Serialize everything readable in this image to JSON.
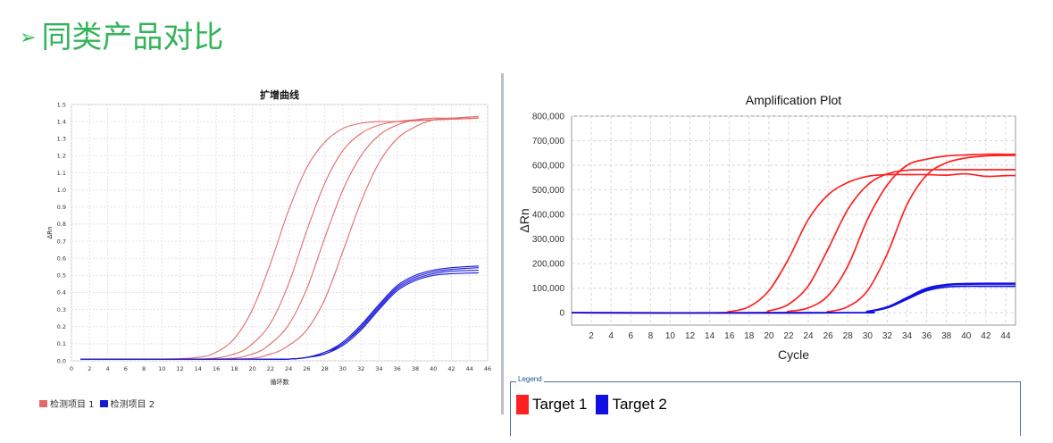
{
  "slide": {
    "title": "同类产品对比",
    "bullet": "➢"
  },
  "legend_label": "Legend",
  "colors": {
    "title": "#33b35a",
    "red1": "#e26a6a",
    "blue1": "#1818d8",
    "red2": "#ff2020",
    "blue2": "#1010e0"
  },
  "chart_data": [
    {
      "type": "line",
      "title": "扩增曲线",
      "xlabel": "循环数",
      "ylabel": "ΔRn",
      "xlim": [
        0,
        46
      ],
      "ylim": [
        0,
        1.5
      ],
      "xticks": [
        0,
        2,
        4,
        6,
        8,
        10,
        12,
        14,
        16,
        18,
        20,
        22,
        24,
        26,
        28,
        30,
        32,
        34,
        36,
        38,
        40,
        42,
        44,
        46
      ],
      "yticks": [
        0,
        0.1,
        0.2,
        0.3,
        0.4,
        0.5,
        0.6,
        0.7,
        0.8,
        0.9,
        1.0,
        1.1,
        1.2,
        1.3,
        1.4,
        1.5
      ],
      "ytick_labels": [
        "0.0",
        "0.1",
        "0.2",
        "0.3",
        "0.4",
        "0.5",
        "0.6",
        "0.7",
        "0.8",
        "0.9",
        "1.0",
        "1.1",
        "1.2",
        "1.3",
        "1.4",
        "1.5"
      ],
      "grid": true,
      "legend": [
        {
          "name": "检测项目 1",
          "color": "#e26a6a"
        },
        {
          "name": "检测项目 2",
          "color": "#1818d8"
        }
      ],
      "series": [
        {
          "name": "检测项目 1",
          "color": "#e26a6a",
          "x": [
            1,
            10,
            14,
            16,
            18,
            20,
            22,
            24,
            26,
            28,
            30,
            32,
            34,
            36,
            40,
            45
          ],
          "y": [
            0.01,
            0.01,
            0.02,
            0.05,
            0.13,
            0.3,
            0.57,
            0.88,
            1.13,
            1.28,
            1.36,
            1.39,
            1.4,
            1.4,
            1.41,
            1.42
          ]
        },
        {
          "name": "检测项目 1",
          "color": "#e26a6a",
          "x": [
            1,
            14,
            18,
            20,
            22,
            24,
            26,
            28,
            30,
            32,
            34,
            36,
            38,
            40,
            45
          ],
          "y": [
            0.01,
            0.01,
            0.04,
            0.1,
            0.22,
            0.45,
            0.76,
            1.04,
            1.23,
            1.33,
            1.38,
            1.4,
            1.41,
            1.41,
            1.42
          ]
        },
        {
          "name": "检测项目 1",
          "color": "#e26a6a",
          "x": [
            1,
            16,
            20,
            22,
            24,
            26,
            28,
            30,
            32,
            34,
            36,
            38,
            40,
            42,
            45
          ],
          "y": [
            0.01,
            0.01,
            0.04,
            0.1,
            0.21,
            0.42,
            0.72,
            1.0,
            1.2,
            1.32,
            1.38,
            1.41,
            1.42,
            1.42,
            1.43
          ]
        },
        {
          "name": "检测项目 1",
          "color": "#e26a6a",
          "x": [
            1,
            18,
            22,
            24,
            26,
            28,
            30,
            32,
            34,
            36,
            38,
            40,
            42,
            45
          ],
          "y": [
            0.01,
            0.01,
            0.04,
            0.09,
            0.18,
            0.36,
            0.64,
            0.93,
            1.16,
            1.3,
            1.37,
            1.41,
            1.42,
            1.43
          ]
        },
        {
          "name": "检测项目 2",
          "color": "#1818d8",
          "x": [
            1,
            20,
            24,
            26,
            28,
            30,
            32,
            34,
            36,
            38,
            40,
            42,
            45
          ],
          "y": [
            0.01,
            0.01,
            0.01,
            0.02,
            0.04,
            0.09,
            0.18,
            0.3,
            0.41,
            0.47,
            0.5,
            0.51,
            0.515
          ]
        },
        {
          "name": "检测项目 2",
          "color": "#1818d8",
          "x": [
            1,
            20,
            24,
            26,
            28,
            30,
            32,
            34,
            36,
            38,
            40,
            42,
            45
          ],
          "y": [
            0.01,
            0.01,
            0.01,
            0.02,
            0.04,
            0.1,
            0.19,
            0.31,
            0.42,
            0.48,
            0.51,
            0.525,
            0.53
          ]
        },
        {
          "name": "检测项目 2",
          "color": "#1818d8",
          "x": [
            1,
            20,
            24,
            26,
            28,
            30,
            32,
            34,
            36,
            38,
            40,
            42,
            45
          ],
          "y": [
            0.01,
            0.01,
            0.01,
            0.02,
            0.05,
            0.1,
            0.2,
            0.32,
            0.43,
            0.49,
            0.52,
            0.535,
            0.545
          ]
        },
        {
          "name": "检测项目 2",
          "color": "#1818d8",
          "x": [
            1,
            20,
            24,
            26,
            28,
            30,
            32,
            34,
            36,
            38,
            40,
            42,
            45
          ],
          "y": [
            0.01,
            0.01,
            0.01,
            0.02,
            0.05,
            0.11,
            0.21,
            0.33,
            0.44,
            0.5,
            0.53,
            0.545,
            0.555
          ]
        }
      ]
    },
    {
      "type": "line",
      "title": "Amplification Plot",
      "xlabel": "Cycle",
      "ylabel": "ΔRn",
      "xlim": [
        0,
        45
      ],
      "ylim": [
        -50000,
        800000
      ],
      "xticks": [
        2,
        4,
        6,
        8,
        10,
        12,
        14,
        16,
        18,
        20,
        22,
        24,
        26,
        28,
        30,
        32,
        34,
        36,
        38,
        40,
        42,
        44
      ],
      "yticks": [
        0,
        100000,
        200000,
        300000,
        400000,
        500000,
        600000,
        700000,
        800000
      ],
      "ytick_labels": [
        "0",
        "100,000",
        "200,000",
        "300,000",
        "400,000",
        "500,000",
        "600,000",
        "700,000",
        "800,000"
      ],
      "grid": true,
      "legend": [
        {
          "name": "Target 1",
          "color": "#ff2020"
        },
        {
          "name": "Target 2",
          "color": "#1010e0"
        }
      ],
      "series": [
        {
          "name": "Target 1",
          "color": "#ff2020",
          "x": [
            0,
            14,
            16,
            18,
            20,
            22,
            24,
            26,
            28,
            30,
            32,
            34,
            36,
            38,
            40,
            42,
            44,
            45
          ],
          "y": [
            0,
            0,
            5000,
            25000,
            90000,
            220000,
            380000,
            480000,
            530000,
            555000,
            562000,
            562000,
            562000,
            560000,
            565000,
            555000,
            558000,
            558000
          ]
        },
        {
          "name": "Target 1",
          "color": "#ff2020",
          "x": [
            0,
            18,
            20,
            22,
            24,
            26,
            28,
            30,
            32,
            34,
            36,
            38,
            40,
            42,
            44,
            45
          ],
          "y": [
            0,
            0,
            8000,
            35000,
            110000,
            260000,
            420000,
            520000,
            565000,
            580000,
            582000,
            582000,
            582000,
            582000,
            582000,
            582000
          ]
        },
        {
          "name": "Target 1",
          "color": "#ff2020",
          "x": [
            0,
            20,
            22,
            24,
            26,
            28,
            30,
            32,
            34,
            36,
            38,
            40,
            42,
            44,
            45
          ],
          "y": [
            0,
            0,
            6000,
            20000,
            70000,
            190000,
            380000,
            520000,
            600000,
            625000,
            638000,
            642000,
            645000,
            645000,
            645000
          ]
        },
        {
          "name": "Target 1",
          "color": "#ff2020",
          "x": [
            0,
            24,
            26,
            28,
            30,
            32,
            34,
            36,
            38,
            40,
            42,
            44,
            45
          ],
          "y": [
            0,
            0,
            5000,
            25000,
            90000,
            240000,
            440000,
            560000,
            610000,
            630000,
            638000,
            640000,
            640000
          ]
        },
        {
          "name": "Target 2",
          "color": "#1010e0",
          "x": [
            0,
            28,
            30,
            32,
            34,
            36,
            38,
            40,
            42,
            44,
            45
          ],
          "y": [
            0,
            0,
            5000,
            20000,
            55000,
            90000,
            105000,
            108000,
            108000,
            108000,
            108000
          ]
        },
        {
          "name": "Target 2",
          "color": "#1010e0",
          "x": [
            0,
            28,
            30,
            32,
            34,
            36,
            38,
            40,
            42,
            44,
            45
          ],
          "y": [
            0,
            0,
            5000,
            22000,
            58000,
            95000,
            112000,
            116000,
            117000,
            117000,
            117000
          ]
        },
        {
          "name": "Target 2",
          "color": "#1010e0",
          "x": [
            0,
            28,
            30,
            32,
            34,
            36,
            38,
            40,
            42,
            44,
            45
          ],
          "y": [
            0,
            0,
            6000,
            24000,
            62000,
            100000,
            115000,
            119000,
            120000,
            120000,
            120000
          ]
        }
      ]
    }
  ]
}
